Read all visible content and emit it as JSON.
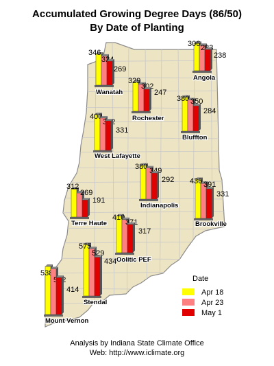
{
  "title": "Accumulated Growing Degree Days (86/50)",
  "subtitle": "By Date of Planting",
  "footer": {
    "line1": "Analysis by Indiana State Climate Office",
    "line2": "Web: http://www.iclimate.org"
  },
  "legend": {
    "title": "Date",
    "items": [
      {
        "label": "Apr 18",
        "color": "#ffff00"
      },
      {
        "label": "Apr 23",
        "color": "#ff8080"
      },
      {
        "label": "May 1",
        "color": "#e00000"
      }
    ]
  },
  "colors": {
    "map_fill": "#ede4c4",
    "county_line": "#c8c8c8",
    "state_outline": "#8a8a8a"
  },
  "chart_data": {
    "type": "bar",
    "series_names": [
      "Apr 18",
      "Apr 23",
      "May 1"
    ],
    "stations": [
      {
        "name": "Wanatah",
        "values": [
          346,
          324,
          269
        ]
      },
      {
        "name": "Angola",
        "values": [
          306,
          283,
          238
        ]
      },
      {
        "name": "Rochester",
        "values": [
          329,
          302,
          247
        ]
      },
      {
        "name": "Bluffton",
        "values": [
          380,
          350,
          284
        ]
      },
      {
        "name": "West Lafayette",
        "values": [
          400,
          362,
          331
        ]
      },
      {
        "name": "Indianapolis",
        "values": [
          380,
          349,
          292
        ]
      },
      {
        "name": "Terre Haute",
        "values": [
          312,
          269,
          191
        ]
      },
      {
        "name": "Brookville",
        "values": [
          436,
          391,
          331
        ]
      },
      {
        "name": "Oolitic PEF",
        "values": [
          410,
          371,
          317
        ]
      },
      {
        "name": "Stendal",
        "values": [
          575,
          529,
          434
        ]
      },
      {
        "name": "Mount Vernon",
        "values": [
          538,
          512,
          414
        ]
      }
    ]
  }
}
